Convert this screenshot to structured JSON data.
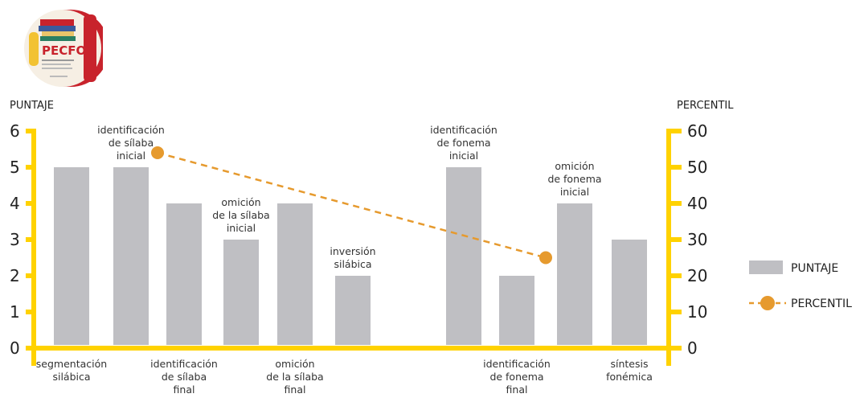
{
  "logo": {
    "text": "PECFO",
    "colors": {
      "red": "#c8232c",
      "yellow": "#f2c232",
      "blue": "#3a5a9c"
    }
  },
  "chart_data": {
    "type": "bar",
    "y_left_label": "PUNTAJE",
    "y_right_label": "PERCENTIL",
    "y_left_ticks": [
      "0",
      "1",
      "2",
      "3",
      "4",
      "5",
      "6"
    ],
    "y_right_ticks": [
      "0",
      "10",
      "20",
      "30",
      "40",
      "50",
      "60"
    ],
    "ylim_left": [
      0,
      6
    ],
    "ylim_right": [
      0,
      60
    ],
    "categories": [
      {
        "label": [
          "segmentación",
          "silábica"
        ],
        "side": "below"
      },
      {
        "label": [
          "identificación",
          "de sílaba",
          "inicial"
        ],
        "side": "above"
      },
      {
        "label": [
          "identificación",
          "de sílaba",
          "final"
        ],
        "side": "below"
      },
      {
        "label": [
          "omición",
          "de la sílaba",
          "inicial"
        ],
        "side": "above"
      },
      {
        "label": [
          "omición",
          "de la sílaba",
          "final"
        ],
        "side": "below"
      },
      {
        "label": [
          "inversión",
          "silábica"
        ],
        "side": "above"
      },
      {
        "label": [
          "identificación",
          "de fonema",
          "inicial"
        ],
        "side": "above"
      },
      {
        "label": [
          "identificación",
          "de fonema",
          "final"
        ],
        "side": "below"
      },
      {
        "label": [
          "omición",
          "de fonema",
          "inicial"
        ],
        "side": "above"
      },
      {
        "label": [
          "síntesis",
          "fonémica"
        ],
        "side": "below"
      }
    ],
    "series": [
      {
        "name": "PUNTAJE",
        "kind": "bar",
        "axis": "left",
        "values": [
          5,
          5,
          4,
          3,
          4,
          2,
          5,
          2,
          4,
          3
        ]
      },
      {
        "name": "PERCENTIL",
        "kind": "line-dashed",
        "axis": "right",
        "points": [
          {
            "x_between": [
              1,
              2
            ],
            "y": 54
          },
          {
            "x_between": [
              7,
              8
            ],
            "y": 25
          }
        ]
      }
    ],
    "colors": {
      "axis": "#ffd200",
      "bar": "#bfbfc3",
      "line": "#e69a2e"
    },
    "legend": {
      "position": "right",
      "items": [
        "PUNTAJE",
        "PERCENTIL"
      ]
    }
  }
}
